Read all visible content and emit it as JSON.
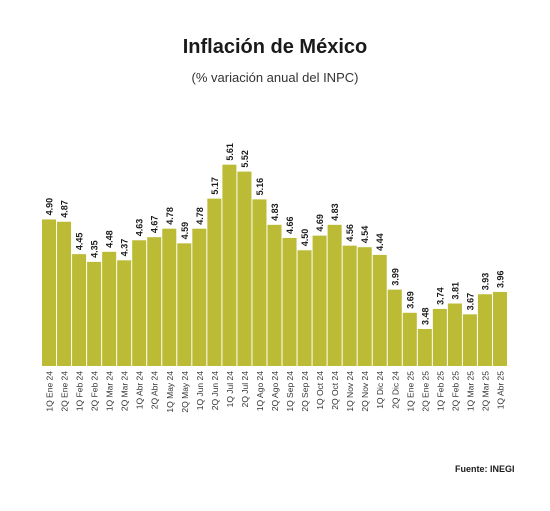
{
  "title": "Inflación de México",
  "subtitle": "(% variación anual del INPC)",
  "source": "Fuente: INEGI",
  "chart_data": {
    "type": "bar",
    "title": "Inflación de México",
    "subtitle": "(% variación anual del INPC)",
    "bar_color": "#bcbb36",
    "bar_edge_color": "#ffffff",
    "ylim": [
      3,
      5.8
    ],
    "grid": false,
    "categories": [
      "1Q Ene 24",
      "2Q Ene 24",
      "1Q Feb 24",
      "2Q Feb 24",
      "1Q Mar 24",
      "2Q Mar 24",
      "1Q Abr 24",
      "2Q Abr 24",
      "1Q May 24",
      "2Q May 24",
      "1Q Jun 24",
      "2Q Jun 24",
      "1Q Jul 24",
      "2Q Jul 24",
      "1Q Ago 24",
      "2Q Ago 24",
      "1Q Sep 24",
      "2Q Sep 24",
      "1Q Oct 24",
      "2Q Oct 24",
      "1Q Nov 24",
      "2Q Nov 24",
      "1Q Dic 24",
      "2Q Dic 24",
      "1Q Ene 25",
      "2Q Ene 25",
      "1Q Feb 25",
      "2Q Feb 25",
      "1Q Mar 25",
      "2Q Mar 25",
      "1Q Abr 25"
    ],
    "values": [
      4.9,
      4.87,
      4.45,
      4.35,
      4.48,
      4.37,
      4.63,
      4.67,
      4.78,
      4.59,
      4.78,
      5.17,
      5.61,
      5.52,
      5.16,
      4.83,
      4.66,
      4.5,
      4.69,
      4.83,
      4.56,
      4.54,
      4.44,
      3.99,
      3.69,
      3.48,
      3.74,
      3.81,
      3.67,
      3.93,
      3.96
    ],
    "labels": [
      "4.90",
      "4.87",
      "4.45",
      "4.35",
      "4.48",
      "4.37",
      "4.63",
      "4.67",
      "4.78",
      "4.59",
      "4.78",
      "5.17",
      "5.61",
      "5.52",
      "5.16",
      "4.83",
      "4.66",
      "4.50",
      "4.69",
      "4.83",
      "4.56",
      "4.54",
      "4.44",
      "3.99",
      "3.69",
      "3.48",
      "3.74",
      "3.81",
      "3.67",
      "3.93",
      "3.96"
    ]
  }
}
